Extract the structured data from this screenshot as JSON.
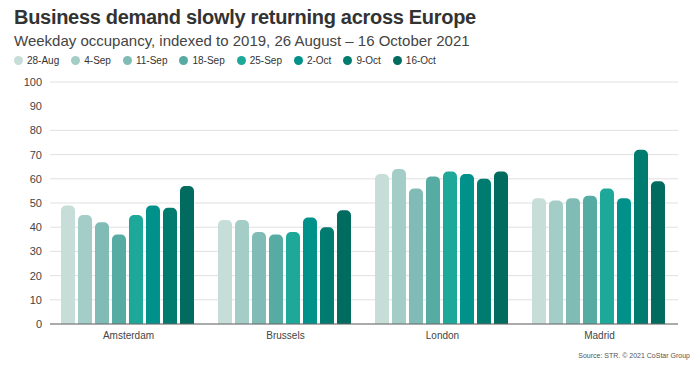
{
  "chart_data": {
    "type": "bar",
    "title": "Business demand slowly returning across Europe",
    "subtitle": "Weekday occupancy, indexed to 2019, 26 August – 16 October 2021",
    "source": "Source: STR. © 2021 CoStar Group",
    "categories": [
      "Amsterdam",
      "Brussels",
      "London",
      "Madrid"
    ],
    "series": [
      {
        "name": "28-Aug",
        "color": "#c6ddd8",
        "values": [
          49,
          43,
          62,
          52
        ]
      },
      {
        "name": "4-Sep",
        "color": "#a5cdc8",
        "values": [
          45,
          43,
          64,
          51
        ]
      },
      {
        "name": "11-Sep",
        "color": "#80bcb5",
        "values": [
          42,
          38,
          56,
          52
        ]
      },
      {
        "name": "18-Sep",
        "color": "#56aba2",
        "values": [
          37,
          37,
          61,
          53
        ]
      },
      {
        "name": "25-Sep",
        "color": "#1ea89a",
        "values": [
          45,
          38,
          63,
          56
        ]
      },
      {
        "name": "2-Oct",
        "color": "#00928a",
        "values": [
          49,
          44,
          62,
          52
        ]
      },
      {
        "name": "9-Oct",
        "color": "#007b70",
        "values": [
          48,
          40,
          60,
          72
        ]
      },
      {
        "name": "16-Oct",
        "color": "#006b5e",
        "values": [
          57,
          47,
          63,
          59
        ]
      }
    ],
    "ylim": [
      0,
      100
    ],
    "yticks": [
      0,
      10,
      20,
      30,
      40,
      50,
      60,
      70,
      80,
      90,
      100
    ],
    "grid": true,
    "legend": "top"
  }
}
